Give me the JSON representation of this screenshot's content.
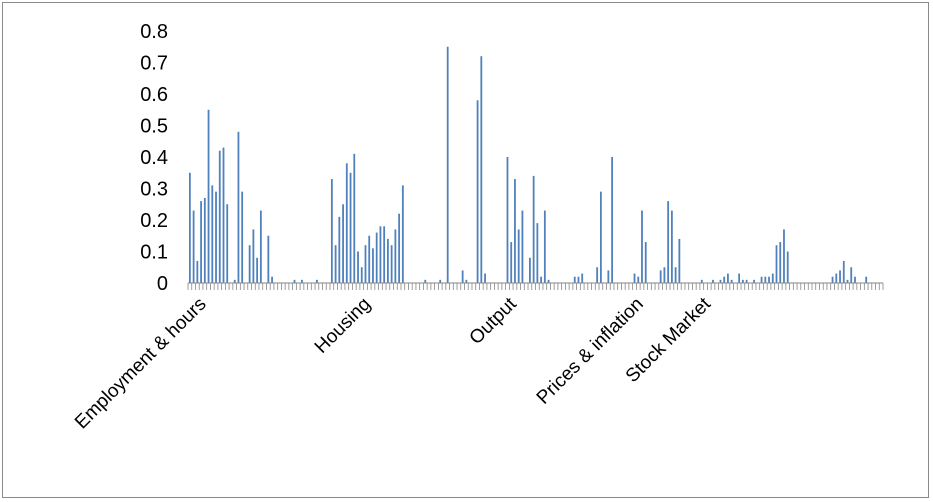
{
  "chart_data": {
    "type": "bar",
    "title": "",
    "xlabel": "",
    "ylabel": "",
    "ylim": [
      0,
      0.8
    ],
    "yticks": [
      "0",
      "0.1",
      "0.2",
      "0.3",
      "0.4",
      "0.5",
      "0.6",
      "0.7",
      "0.8"
    ],
    "grid": false,
    "legend": "none",
    "bar_color": "#4f81bd",
    "axis_color": "#868686",
    "category_labels": [
      {
        "label": "Employment & hours",
        "index": 3
      },
      {
        "label": "Housing",
        "index": 47
      },
      {
        "label": "Output",
        "index": 86
      },
      {
        "label": "Prices & inflation",
        "index": 120
      },
      {
        "label": "Stock Market",
        "index": 138
      }
    ],
    "values": [
      0.35,
      0.23,
      0.07,
      0.26,
      0.27,
      0.55,
      0.31,
      0.29,
      0.42,
      0.43,
      0.25,
      0.0,
      0.01,
      0.48,
      0.29,
      0.0,
      0.12,
      0.17,
      0.08,
      0.23,
      0.0,
      0.15,
      0.02,
      0.0,
      0.0,
      0.0,
      0.0,
      0.0,
      0.01,
      0.0,
      0.01,
      0.0,
      0.0,
      0.0,
      0.01,
      0.0,
      0.0,
      0.0,
      0.33,
      0.12,
      0.21,
      0.25,
      0.38,
      0.35,
      0.41,
      0.1,
      0.05,
      0.12,
      0.15,
      0.11,
      0.16,
      0.18,
      0.18,
      0.14,
      0.12,
      0.17,
      0.22,
      0.31,
      0.0,
      0.0,
      0.0,
      0.0,
      0.0,
      0.01,
      0.0,
      0.0,
      0.0,
      0.01,
      0.0,
      0.75,
      0.0,
      0.0,
      0.0,
      0.04,
      0.01,
      0.0,
      0.0,
      0.58,
      0.72,
      0.03,
      0.0,
      0.0,
      0.0,
      0.0,
      0.0,
      0.4,
      0.13,
      0.33,
      0.17,
      0.23,
      0.0,
      0.08,
      0.34,
      0.19,
      0.02,
      0.23,
      0.01,
      0.0,
      0.0,
      0.0,
      0.0,
      0.0,
      0.0,
      0.02,
      0.02,
      0.03,
      0.0,
      0.0,
      0.0,
      0.05,
      0.29,
      0.0,
      0.04,
      0.4,
      0.0,
      0.0,
      0.0,
      0.0,
      0.0,
      0.03,
      0.02,
      0.23,
      0.13,
      0.0,
      0.0,
      0.0,
      0.04,
      0.05,
      0.26,
      0.23,
      0.05,
      0.14,
      0.0,
      0.0,
      0.0,
      0.0,
      0.0,
      0.01,
      0.0,
      0.0,
      0.01,
      0.0,
      0.01,
      0.02,
      0.03,
      0.01,
      0.0,
      0.03,
      0.01,
      0.01,
      0.0,
      0.01,
      0.0,
      0.02,
      0.02,
      0.02,
      0.03,
      0.12,
      0.13,
      0.17,
      0.1,
      0.0,
      0.0,
      0.0,
      0.0,
      0.0,
      0.0,
      0.0,
      0.0,
      0.0,
      0.0,
      0.0,
      0.02,
      0.03,
      0.04,
      0.07,
      0.01,
      0.05,
      0.02,
      0.0,
      0.0,
      0.02,
      0.0,
      0.0,
      0.0,
      0.0
    ]
  }
}
